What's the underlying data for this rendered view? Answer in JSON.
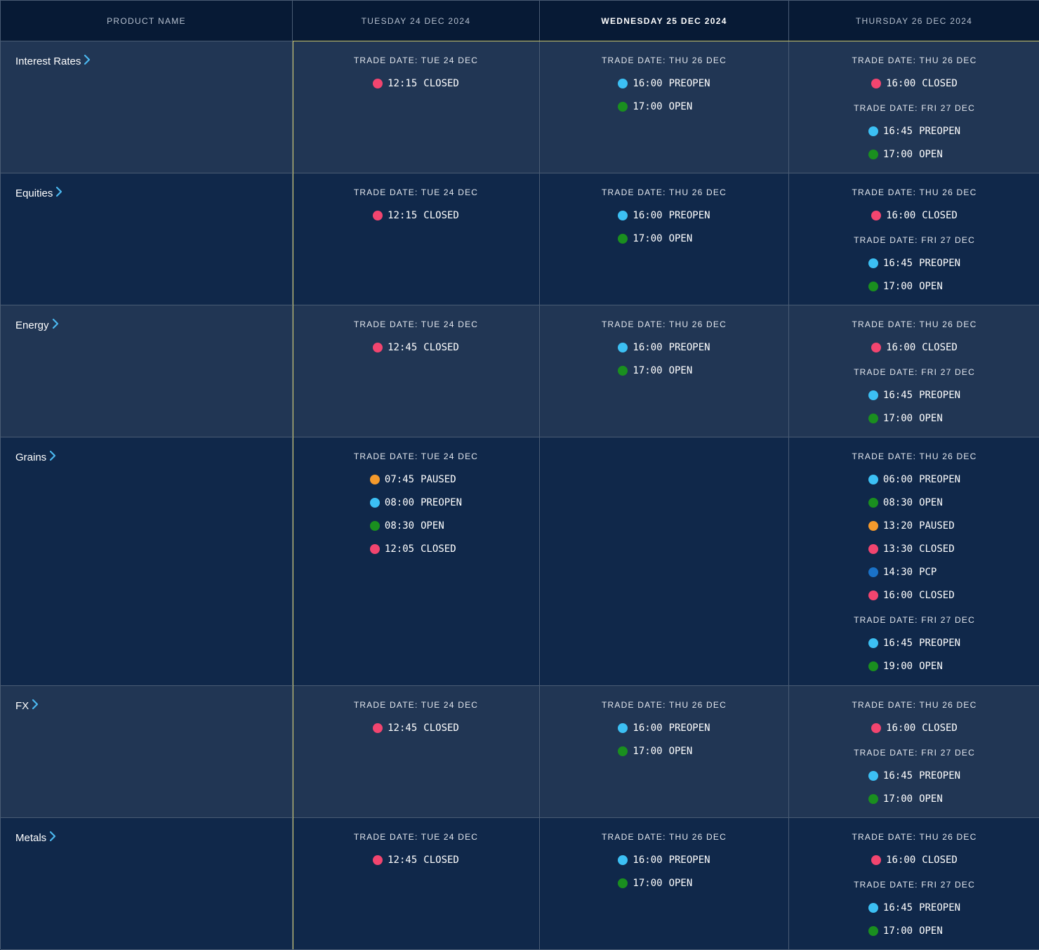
{
  "headers": [
    "Product Name",
    "Tuesday 24 Dec 2024",
    "Wednesday 25 Dec 2024",
    "Thursday 26 Dec 2024"
  ],
  "status_colors": {
    "CLOSED": "#f2456f",
    "PREOPEN": "#3cc0f4",
    "OPEN": "#1a8f1f",
    "PAUSED": "#f59a2c",
    "PCP": "#1a72c8"
  },
  "products": [
    {
      "name": "Interest Rates",
      "days": [
        [
          {
            "date": "Trade date: Tue 24 Dec",
            "events": [
              {
                "time": "12:15",
                "status": "CLOSED"
              }
            ]
          }
        ],
        [
          {
            "date": "Trade date: Thu 26 Dec",
            "events": [
              {
                "time": "16:00",
                "status": "PREOPEN"
              },
              {
                "time": "17:00",
                "status": "OPEN"
              }
            ]
          }
        ],
        [
          {
            "date": "Trade date: Thu 26 Dec",
            "events": [
              {
                "time": "16:00",
                "status": "CLOSED"
              }
            ]
          },
          {
            "date": "Trade date: Fri 27 Dec",
            "events": [
              {
                "time": "16:45",
                "status": "PREOPEN"
              },
              {
                "time": "17:00",
                "status": "OPEN"
              }
            ]
          }
        ]
      ]
    },
    {
      "name": "Equities",
      "days": [
        [
          {
            "date": "Trade date: Tue 24 Dec",
            "events": [
              {
                "time": "12:15",
                "status": "CLOSED"
              }
            ]
          }
        ],
        [
          {
            "date": "Trade date: Thu 26 Dec",
            "events": [
              {
                "time": "16:00",
                "status": "PREOPEN"
              },
              {
                "time": "17:00",
                "status": "OPEN"
              }
            ]
          }
        ],
        [
          {
            "date": "Trade date: Thu 26 Dec",
            "events": [
              {
                "time": "16:00",
                "status": "CLOSED"
              }
            ]
          },
          {
            "date": "Trade date: Fri 27 Dec",
            "events": [
              {
                "time": "16:45",
                "status": "PREOPEN"
              },
              {
                "time": "17:00",
                "status": "OPEN"
              }
            ]
          }
        ]
      ]
    },
    {
      "name": "Energy",
      "days": [
        [
          {
            "date": "Trade date: Tue 24 Dec",
            "events": [
              {
                "time": "12:45",
                "status": "CLOSED"
              }
            ]
          }
        ],
        [
          {
            "date": "Trade date: Thu 26 Dec",
            "events": [
              {
                "time": "16:00",
                "status": "PREOPEN"
              },
              {
                "time": "17:00",
                "status": "OPEN"
              }
            ]
          }
        ],
        [
          {
            "date": "Trade date: Thu 26 Dec",
            "events": [
              {
                "time": "16:00",
                "status": "CLOSED"
              }
            ]
          },
          {
            "date": "Trade date: Fri 27 Dec",
            "events": [
              {
                "time": "16:45",
                "status": "PREOPEN"
              },
              {
                "time": "17:00",
                "status": "OPEN"
              }
            ]
          }
        ]
      ]
    },
    {
      "name": "Grains",
      "days": [
        [
          {
            "date": "Trade date: Tue 24 Dec",
            "events": [
              {
                "time": "07:45",
                "status": "PAUSED"
              },
              {
                "time": "08:00",
                "status": "PREOPEN"
              },
              {
                "time": "08:30",
                "status": "OPEN"
              },
              {
                "time": "12:05",
                "status": "CLOSED"
              }
            ]
          }
        ],
        [],
        [
          {
            "date": "Trade date: Thu 26 Dec",
            "events": [
              {
                "time": "06:00",
                "status": "PREOPEN"
              },
              {
                "time": "08:30",
                "status": "OPEN"
              },
              {
                "time": "13:20",
                "status": "PAUSED"
              },
              {
                "time": "13:30",
                "status": "CLOSED"
              },
              {
                "time": "14:30",
                "status": "PCP"
              },
              {
                "time": "16:00",
                "status": "CLOSED"
              }
            ]
          },
          {
            "date": "Trade date: Fri 27 Dec",
            "events": [
              {
                "time": "16:45",
                "status": "PREOPEN"
              },
              {
                "time": "19:00",
                "status": "OPEN"
              }
            ]
          }
        ]
      ]
    },
    {
      "name": "FX",
      "days": [
        [
          {
            "date": "Trade date: Tue 24 Dec",
            "events": [
              {
                "time": "12:45",
                "status": "CLOSED"
              }
            ]
          }
        ],
        [
          {
            "date": "Trade date: Thu 26 Dec",
            "events": [
              {
                "time": "16:00",
                "status": "PREOPEN"
              },
              {
                "time": "17:00",
                "status": "OPEN"
              }
            ]
          }
        ],
        [
          {
            "date": "Trade date: Thu 26 Dec",
            "events": [
              {
                "time": "16:00",
                "status": "CLOSED"
              }
            ]
          },
          {
            "date": "Trade date: Fri 27 Dec",
            "events": [
              {
                "time": "16:45",
                "status": "PREOPEN"
              },
              {
                "time": "17:00",
                "status": "OPEN"
              }
            ]
          }
        ]
      ]
    },
    {
      "name": "Metals",
      "days": [
        [
          {
            "date": "Trade date: Tue 24 Dec",
            "events": [
              {
                "time": "12:45",
                "status": "CLOSED"
              }
            ]
          }
        ],
        [
          {
            "date": "Trade date: Thu 26 Dec",
            "events": [
              {
                "time": "16:00",
                "status": "PREOPEN"
              },
              {
                "time": "17:00",
                "status": "OPEN"
              }
            ]
          }
        ],
        [
          {
            "date": "Trade date: Thu 26 Dec",
            "events": [
              {
                "time": "16:00",
                "status": "CLOSED"
              }
            ]
          },
          {
            "date": "Trade date: Fri 27 Dec",
            "events": [
              {
                "time": "16:45",
                "status": "PREOPEN"
              },
              {
                "time": "17:00",
                "status": "OPEN"
              }
            ]
          }
        ]
      ]
    }
  ],
  "icons": {
    "product_link": "chevron-right-icon",
    "status": "status-dot-icon"
  },
  "accent_color": "#4bb8f0"
}
